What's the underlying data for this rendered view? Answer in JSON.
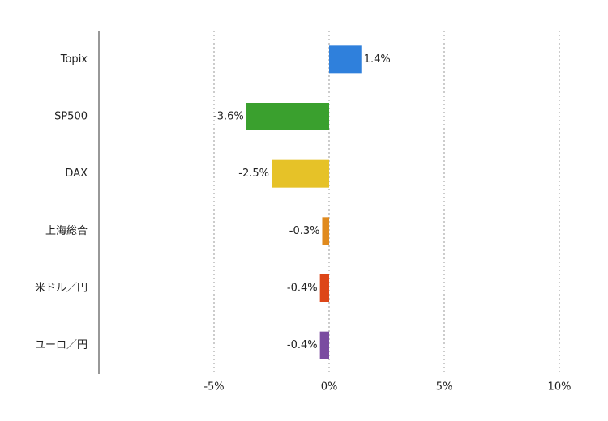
{
  "chart_data": {
    "type": "hbar",
    "categories": [
      "Topix",
      "SP500",
      "DAX",
      "上海総合",
      "米ドル／円",
      "ユーロ／円"
    ],
    "values": [
      1.4,
      -3.6,
      -2.5,
      -0.3,
      -0.4,
      -0.4
    ],
    "value_labels": [
      "1.4%",
      "-3.6%",
      "-2.5%",
      "-0.3%",
      "-0.4%",
      "-0.4%"
    ],
    "colors": [
      "#2f80dc",
      "#3aa02e",
      "#e6c228",
      "#e08a1e",
      "#dd4618",
      "#7a4ca0"
    ],
    "xlim": [
      -10,
      10
    ],
    "xticks": [
      {
        "value": -5,
        "label": "-5%"
      },
      {
        "value": 0,
        "label": "0%"
      },
      {
        "value": 5,
        "label": "5%"
      },
      {
        "value": 10,
        "label": "10%"
      }
    ],
    "grid": true
  }
}
